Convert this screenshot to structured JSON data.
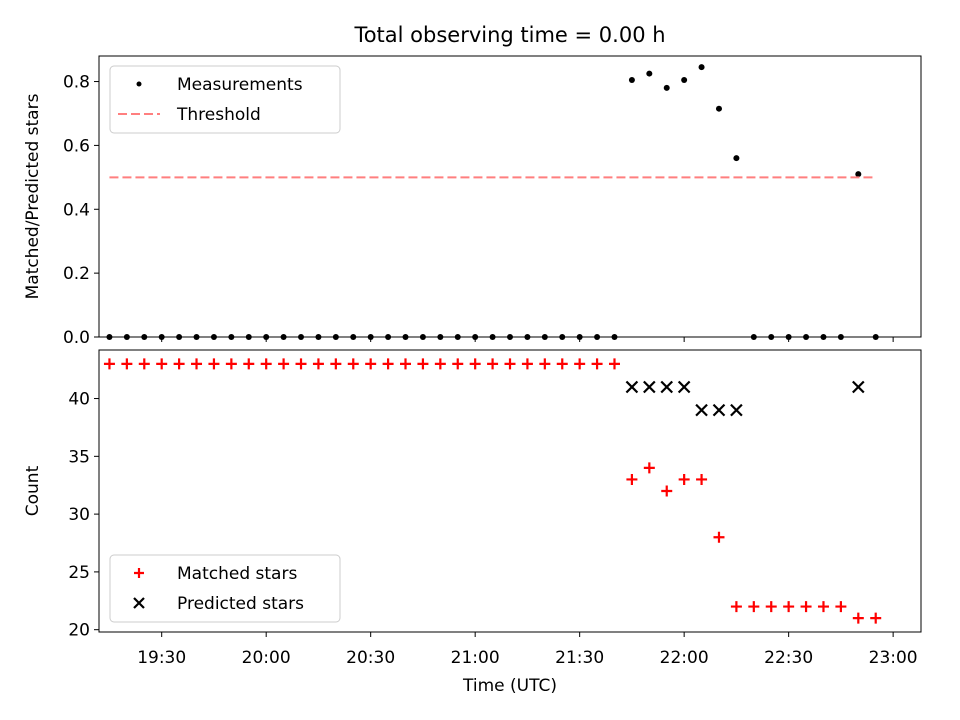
{
  "figure": {
    "title": "Total observing time = 0.00 h",
    "xlabel": "Time (UTC)"
  },
  "chart_data": [
    {
      "type": "scatter",
      "ylabel": "Matched/Predicted stars",
      "xlim": [
        "19:12",
        "23:08"
      ],
      "ylim": [
        0.0,
        0.88
      ],
      "yticks": [
        0.0,
        0.2,
        0.4,
        0.6,
        0.8
      ],
      "ytick_labels": [
        "0.0",
        "0.2",
        "0.4",
        "0.6",
        "0.8"
      ],
      "legend": {
        "position": "upper-left"
      },
      "series": [
        {
          "name": "Measurements",
          "kind": "points",
          "color": "#000000",
          "x": [
            "19:15",
            "19:20",
            "19:25",
            "19:30",
            "19:35",
            "19:40",
            "19:45",
            "19:50",
            "19:55",
            "20:00",
            "20:05",
            "20:10",
            "20:15",
            "20:20",
            "20:25",
            "20:30",
            "20:35",
            "20:40",
            "20:45",
            "20:50",
            "20:55",
            "21:00",
            "21:05",
            "21:10",
            "21:15",
            "21:20",
            "21:25",
            "21:30",
            "21:35",
            "21:40",
            "21:45",
            "21:50",
            "21:55",
            "22:00",
            "22:05",
            "22:10",
            "22:15",
            "22:20",
            "22:25",
            "22:30",
            "22:35",
            "22:40",
            "22:45",
            "22:50",
            "22:55"
          ],
          "y": [
            0,
            0,
            0,
            0,
            0,
            0,
            0,
            0,
            0,
            0,
            0,
            0,
            0,
            0,
            0,
            0,
            0,
            0,
            0,
            0,
            0,
            0,
            0,
            0,
            0,
            0,
            0,
            0,
            0,
            0,
            0.805,
            0.825,
            0.78,
            0.805,
            0.845,
            0.715,
            0.56,
            0,
            0,
            0,
            0,
            0,
            0,
            0.51,
            0
          ]
        },
        {
          "name": "Threshold",
          "kind": "dashed-line",
          "color": "#ff7f7f",
          "x": [
            "19:15",
            "22:55"
          ],
          "y": [
            0.5,
            0.5
          ]
        }
      ]
    },
    {
      "type": "scatter",
      "ylabel": "Count",
      "xlim": [
        "19:12",
        "23:08"
      ],
      "ylim": [
        19.8,
        44.2
      ],
      "yticks": [
        20,
        25,
        30,
        35,
        40
      ],
      "ytick_labels": [
        "20",
        "25",
        "30",
        "35",
        "40"
      ],
      "xticks": [
        "19:30",
        "20:00",
        "20:30",
        "21:00",
        "21:30",
        "22:00",
        "22:30",
        "23:00"
      ],
      "xtick_labels": [
        "19:30",
        "20:00",
        "20:30",
        "21:00",
        "21:30",
        "22:00",
        "22:30",
        "23:00"
      ],
      "legend": {
        "position": "lower-left"
      },
      "series": [
        {
          "name": "Matched stars",
          "marker": "plus",
          "color": "#ff0000",
          "x": [
            "19:15",
            "19:20",
            "19:25",
            "19:30",
            "19:35",
            "19:40",
            "19:45",
            "19:50",
            "19:55",
            "20:00",
            "20:05",
            "20:10",
            "20:15",
            "20:20",
            "20:25",
            "20:30",
            "20:35",
            "20:40",
            "20:45",
            "20:50",
            "20:55",
            "21:00",
            "21:05",
            "21:10",
            "21:15",
            "21:20",
            "21:25",
            "21:30",
            "21:35",
            "21:40",
            "21:45",
            "21:50",
            "21:55",
            "22:00",
            "22:05",
            "22:10",
            "22:15",
            "22:20",
            "22:25",
            "22:30",
            "22:35",
            "22:40",
            "22:45",
            "22:50",
            "22:55"
          ],
          "y": [
            43,
            43,
            43,
            43,
            43,
            43,
            43,
            43,
            43,
            43,
            43,
            43,
            43,
            43,
            43,
            43,
            43,
            43,
            43,
            43,
            43,
            43,
            43,
            43,
            43,
            43,
            43,
            43,
            43,
            43,
            33,
            34,
            32,
            33,
            33,
            28,
            22,
            22,
            22,
            22,
            22,
            22,
            22,
            21,
            21
          ]
        },
        {
          "name": "Predicted stars",
          "marker": "x",
          "color": "#000000",
          "x": [
            "21:45",
            "21:50",
            "21:55",
            "22:00",
            "22:05",
            "22:10",
            "22:15",
            "22:50"
          ],
          "y": [
            41,
            41,
            41,
            41,
            39,
            39,
            39,
            41
          ]
        }
      ]
    }
  ]
}
